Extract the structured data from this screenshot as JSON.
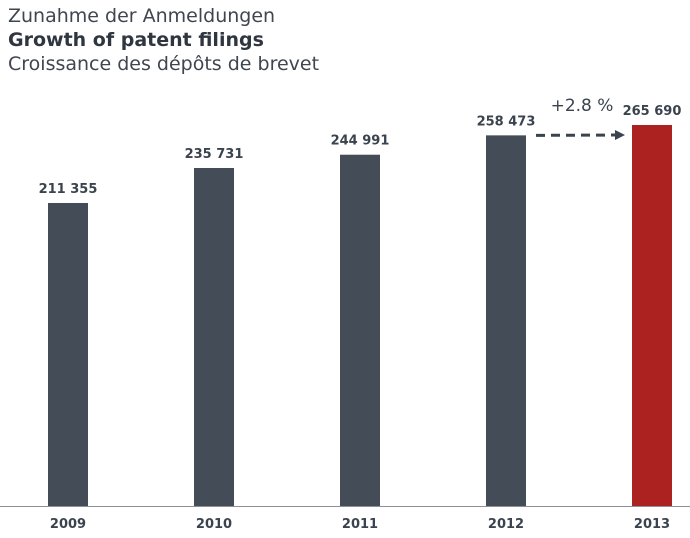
{
  "chart_data": {
    "type": "bar",
    "title": "Zunahme der Anmeldungen",
    "subtitle": "Growth of patent filings",
    "subtitle2": "Croissance des dépôts de brevet",
    "categories": [
      "2009",
      "2010",
      "2011",
      "2012",
      "2013"
    ],
    "values": [
      211355,
      235731,
      244991,
      258473,
      265690
    ],
    "value_labels": [
      "211 355",
      "235 731",
      "244 991",
      "258 473",
      "265 690"
    ],
    "highlight_index": 4,
    "colors": {
      "bar": "#434c57",
      "highlight": "#ab2220",
      "axis": "#8c9197",
      "text": "#3a434e"
    },
    "annotation": {
      "text": "+2.8 %",
      "from_index": 3,
      "to_index": 4
    },
    "ylim": [
      0,
      265690
    ],
    "grid": false,
    "xlabel": "",
    "ylabel": ""
  }
}
